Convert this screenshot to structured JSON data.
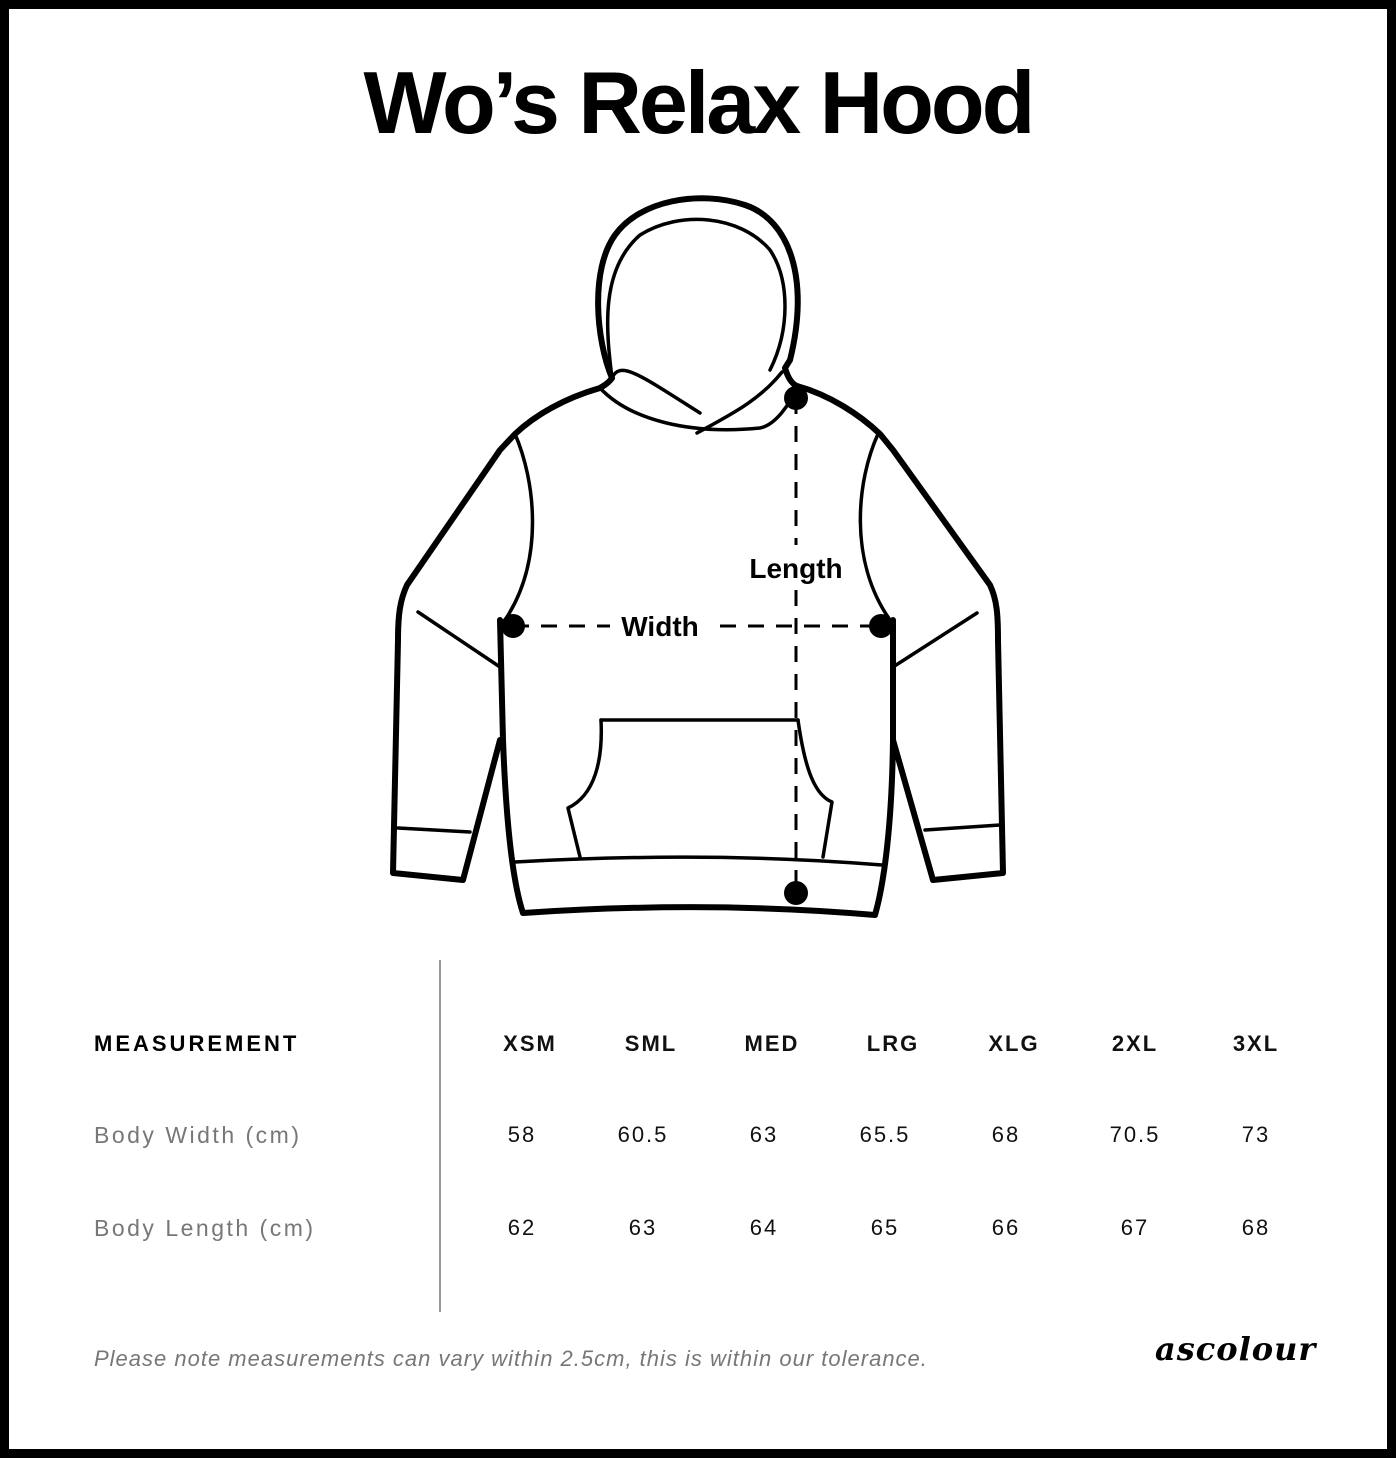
{
  "title": "Wo’s Relax Hood",
  "diagram": {
    "width_label": "Width",
    "length_label": "Length"
  },
  "table": {
    "header": "MEASUREMENT",
    "sizes": [
      "XSM",
      "SML",
      "MED",
      "LRG",
      "XLG",
      "2XL",
      "3XL"
    ],
    "rows": [
      {
        "label": "Body Width (cm)",
        "values": [
          "58",
          "60.5",
          "63",
          "65.5",
          "68",
          "70.5",
          "73"
        ]
      },
      {
        "label": "Body Length (cm)",
        "values": [
          "62",
          "63",
          "64",
          "65",
          "66",
          "67",
          "68"
        ]
      }
    ]
  },
  "footnote": "Please note measurements can vary within 2.5cm, this is within our tolerance.",
  "logo": "ascolour"
}
